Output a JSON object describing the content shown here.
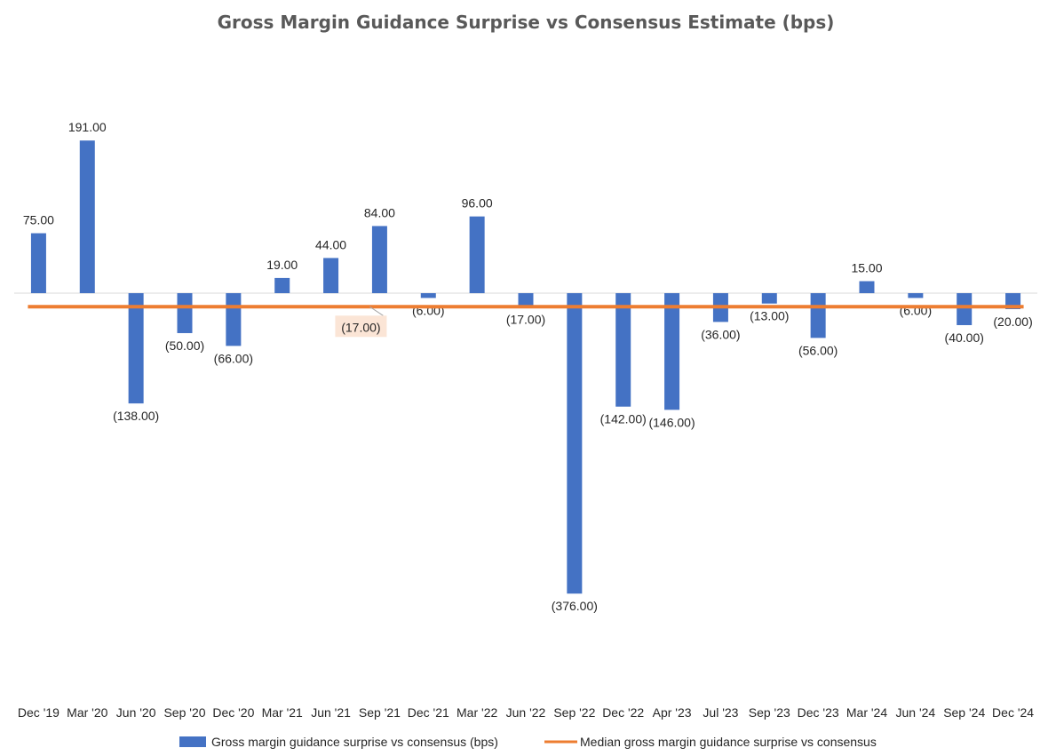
{
  "chart_data": {
    "type": "bar",
    "title": "Gross Margin Guidance Surprise vs Consensus Estimate (bps)",
    "categories": [
      "Dec '19",
      "Mar '20",
      "Jun '20",
      "Sep '20",
      "Dec '20",
      "Mar '21",
      "Jun '21",
      "Sep '21",
      "Dec '21",
      "Mar '22",
      "Jun '22",
      "Sep '22",
      "Dec '22",
      "Apr '23",
      "Jul '23",
      "Sep '23",
      "Dec '23",
      "Mar '24",
      "Jun '24",
      "Sep '24",
      "Dec '24"
    ],
    "series": [
      {
        "name": "Gross margin guidance surprise vs consensus (bps)",
        "type": "bar",
        "color": "#4472C4",
        "values": [
          75,
          191,
          -138,
          -50,
          -66,
          19,
          44,
          84,
          -6,
          96,
          -17,
          -376,
          -142,
          -146,
          -36,
          -13,
          -56,
          15,
          -6,
          -40,
          -20
        ],
        "labels": [
          "75.00",
          "191.00",
          "(138.00)",
          "(50.00)",
          "(66.00)",
          "19.00",
          "44.00",
          "84.00",
          "(6.00)",
          "96.00",
          "(17.00)",
          "(376.00)",
          "(142.00)",
          "(146.00)",
          "(36.00)",
          "(13.00)",
          "(56.00)",
          "15.00",
          "(6.00)",
          "(40.00)",
          "(20.00)"
        ]
      },
      {
        "name": "Median gross margin guidance surprise vs consensus",
        "type": "line",
        "color": "#ED7D31",
        "value": -17,
        "label": "(17.00)"
      }
    ],
    "xlabel": "",
    "ylabel": "",
    "ylim": [
      -500,
      300
    ],
    "grid": false,
    "legend": "bottom"
  }
}
